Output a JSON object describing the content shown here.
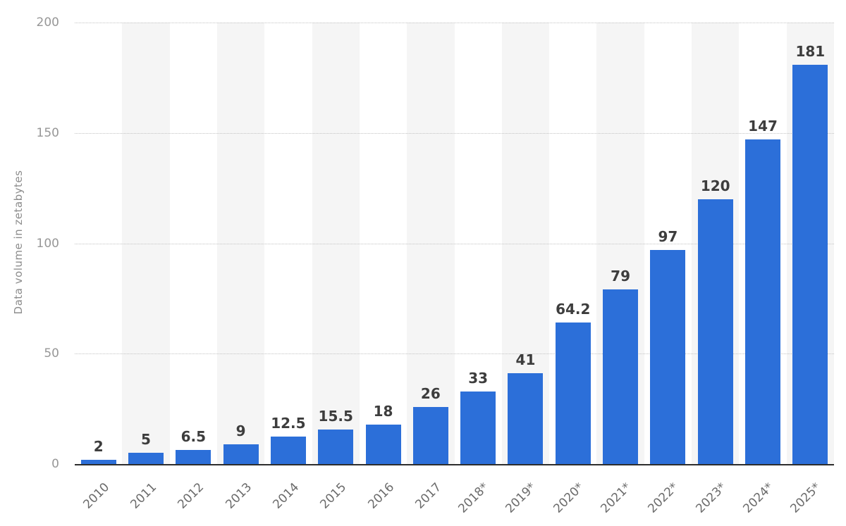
{
  "chart_data": {
    "type": "bar",
    "title": "",
    "categories": [
      "2010",
      "2011",
      "2012",
      "2013",
      "2014",
      "2015",
      "2016",
      "2017",
      "2018*",
      "2019*",
      "2020*",
      "2021*",
      "2022*",
      "2023*",
      "2024*",
      "2025*"
    ],
    "values": [
      2,
      5,
      6.5,
      9,
      12.5,
      15.5,
      18,
      26,
      33,
      41,
      64.2,
      79,
      97,
      120,
      147,
      181
    ],
    "value_labels": [
      "2",
      "5",
      "6.5",
      "9",
      "12.5",
      "15.5",
      "18",
      "26",
      "33",
      "41",
      "64.2",
      "79",
      "97",
      "120",
      "147",
      "181"
    ],
    "xlabel": "",
    "ylabel": "Data volume in zetabytes",
    "ylim": [
      0,
      200
    ],
    "yticks": [
      0,
      50,
      100,
      150,
      200
    ],
    "grid": "horizontal-dotted",
    "legend": "none",
    "colors": {
      "bar": "#2c6fd9",
      "band": "#f5f5f5",
      "gridline": "#c3c3c3",
      "axis_line": "#2d2d2d",
      "value_label": "#3d3d3d",
      "y_tick_label": "#979797",
      "x_tick_label": "#6b6b6b",
      "y_axis_title": "#8c8c8c",
      "background": "#ffffff"
    }
  }
}
